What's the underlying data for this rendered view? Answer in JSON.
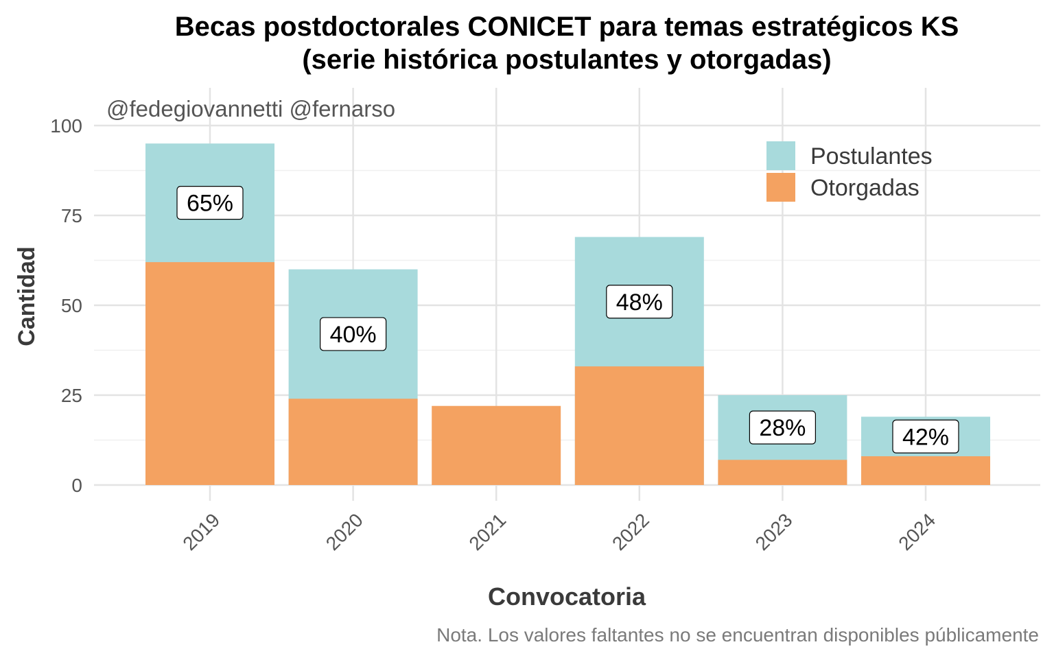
{
  "chart_data": {
    "type": "bar",
    "stacked": false,
    "title_line1": "Becas postdoctorales CONICET para temas estratégicos KS",
    "title_line2": "(serie histórica postulantes y otorgadas)",
    "watermark": "@fedegiovannetti @fernarso",
    "xlabel": "Convocatoria",
    "ylabel": "Cantidad",
    "caption": "Nota. Los valores faltantes no se encuentran disponibles públicamente",
    "categories": [
      "2019",
      "2020",
      "2021",
      "2022",
      "2023",
      "2024"
    ],
    "ylim": [
      0,
      110
    ],
    "yticks": [
      0,
      25,
      50,
      75,
      100
    ],
    "grid": true,
    "legend_position": "top-right",
    "series": [
      {
        "name": "Postulantes",
        "color": "#A8DADC",
        "values": [
          95,
          60,
          null,
          69,
          25,
          19
        ]
      },
      {
        "name": "Otorgadas",
        "color": "#F4A261",
        "values": [
          62,
          24,
          22,
          33,
          7,
          8
        ]
      }
    ],
    "labels": [
      "65%",
      "40%",
      "",
      "48%",
      "28%",
      "42%"
    ]
  }
}
